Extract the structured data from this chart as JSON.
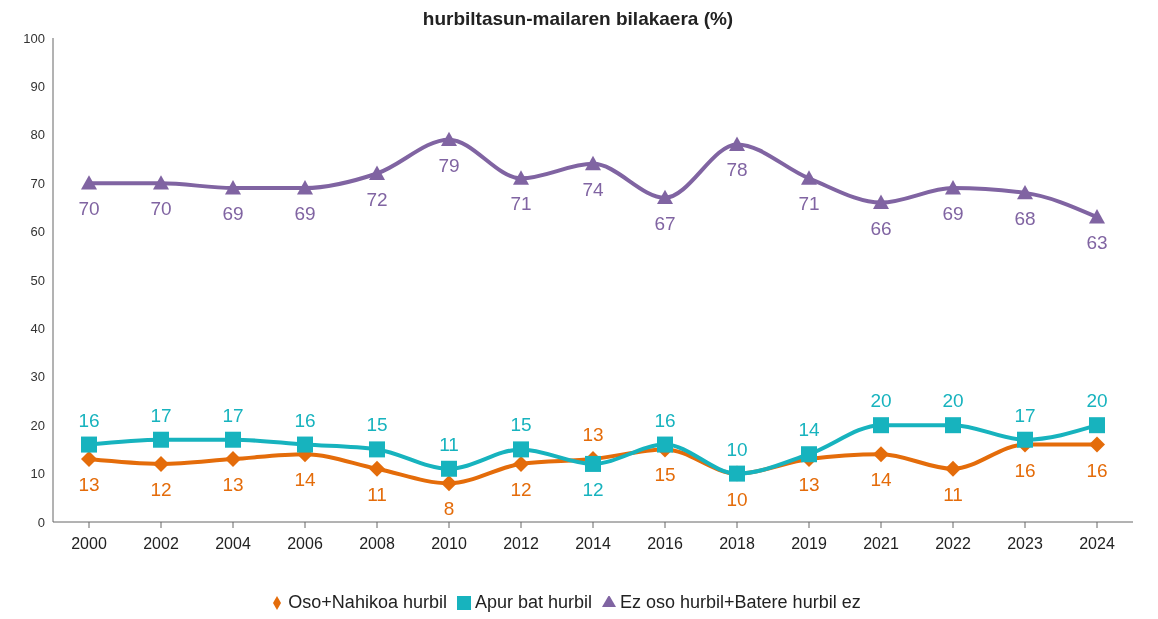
{
  "chart_data": {
    "type": "line",
    "title": "hurbiltasun-mailaren bilakaera (%)",
    "categories": [
      "2000",
      "2002",
      "2004",
      "2006",
      "2008",
      "2010",
      "2012",
      "2014",
      "2016",
      "2018",
      "2019",
      "2021",
      "2022",
      "2023",
      "2024"
    ],
    "series": [
      {
        "name": "Oso+Nahikoa hurbil",
        "color": "#e46c0a",
        "marker": "diamond",
        "values": [
          13,
          12,
          13,
          14,
          11,
          8,
          12,
          13,
          15,
          10,
          13,
          14,
          11,
          16,
          16
        ]
      },
      {
        "name": "Apur bat hurbil",
        "color": "#17b3be",
        "marker": "square",
        "values": [
          16,
          17,
          17,
          16,
          15,
          11,
          15,
          12,
          16,
          10,
          14,
          20,
          20,
          17,
          20
        ]
      },
      {
        "name": "Ez oso hurbil+Batere hurbil ez",
        "color": "#8064a2",
        "marker": "triangle",
        "values": [
          70,
          70,
          69,
          69,
          72,
          79,
          71,
          74,
          67,
          78,
          71,
          66,
          69,
          68,
          63
        ]
      }
    ],
    "ylim": [
      0,
      100
    ],
    "yticks": [
      0,
      10,
      20,
      30,
      40,
      50,
      60,
      70,
      80,
      90,
      100
    ],
    "grid": false,
    "legend": "bottom",
    "data_labels": true
  }
}
